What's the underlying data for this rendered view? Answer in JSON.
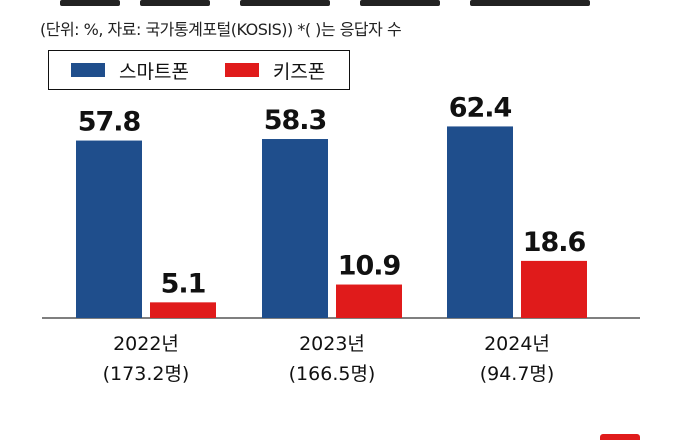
{
  "header": {
    "unit_note": "(단위: %, 자료: 국가통계포털(KOSIS)) *(  )는 응답자 수"
  },
  "legend": {
    "items": [
      {
        "label": "스마트폰",
        "color": "#1f4e8c"
      },
      {
        "label": "키즈폰",
        "color": "#e01b1b"
      }
    ]
  },
  "chart_data": {
    "type": "bar",
    "categories": [
      "2022년",
      "2023년",
      "2024년"
    ],
    "category_sublabels": [
      "(173.2명)",
      "(166.5명)",
      "(94.7명)"
    ],
    "series": [
      {
        "name": "스마트폰",
        "color": "#1f4e8c",
        "values": [
          57.8,
          58.3,
          62.4
        ]
      },
      {
        "name": "키즈폰",
        "color": "#e01b1b",
        "values": [
          5.1,
          10.9,
          18.6
        ]
      }
    ],
    "value_labels": [
      [
        "57.8",
        "58.3",
        "62.4"
      ],
      [
        "5.1",
        "10.9",
        "18.6"
      ]
    ],
    "ylim": [
      0,
      70
    ],
    "grid": false,
    "legend_position": "top-left",
    "xlabel": "",
    "ylabel": ""
  }
}
